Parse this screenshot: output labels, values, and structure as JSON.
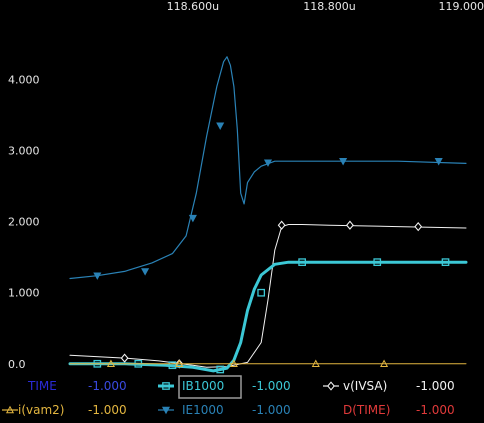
{
  "chart_data": {
    "type": "line",
    "x_unit": "u",
    "xlim": [
      118.42,
      119.0
    ],
    "ylim": [
      -0.2,
      4.95
    ],
    "x_ticks": [
      {
        "value": 118.6,
        "label": "118.600u"
      },
      {
        "value": 118.8,
        "label": "118.800u"
      },
      {
        "value": 119.0,
        "label": "119.000"
      }
    ],
    "y_ticks": [
      {
        "value": 4.0,
        "label": "4.000"
      },
      {
        "value": 3.0,
        "label": "3.000"
      },
      {
        "value": 2.0,
        "label": "2.000"
      },
      {
        "value": 1.0,
        "label": "1.000"
      },
      {
        "value": 0.0,
        "label": "0.0"
      }
    ],
    "grid": false,
    "series": [
      {
        "name": "IE1000",
        "color": "#2a82b6",
        "marker": "triangle-down",
        "width": 1.2,
        "x": [
          118.42,
          118.46,
          118.5,
          118.54,
          118.57,
          118.59,
          118.605,
          118.62,
          118.635,
          118.645,
          118.65,
          118.655,
          118.66,
          118.665,
          118.67,
          118.675,
          118.68,
          118.69,
          118.7,
          118.72,
          118.75,
          118.8,
          118.9,
          119.0
        ],
        "y": [
          1.2,
          1.24,
          1.3,
          1.42,
          1.55,
          1.8,
          2.4,
          3.2,
          3.9,
          4.25,
          4.32,
          4.2,
          3.9,
          3.3,
          2.4,
          2.25,
          2.55,
          2.7,
          2.78,
          2.85,
          2.85,
          2.85,
          2.85,
          2.82
        ],
        "marker_x": [
          118.46,
          118.53,
          118.6,
          118.64,
          118.71,
          118.82,
          118.96
        ],
        "marker_y": [
          1.24,
          1.3,
          2.05,
          3.35,
          2.83,
          2.85,
          2.85
        ]
      },
      {
        "name": "v(IVSA)",
        "color": "#f2f2f2",
        "marker": "diamond",
        "width": 1.0,
        "x": [
          118.42,
          118.5,
          118.55,
          118.6,
          118.62,
          118.65,
          118.68,
          118.7,
          118.71,
          118.72,
          118.73,
          118.74,
          118.76,
          118.8,
          118.9,
          119.0
        ],
        "y": [
          0.12,
          0.08,
          0.04,
          -0.02,
          -0.05,
          -0.04,
          0.02,
          0.3,
          0.9,
          1.6,
          1.93,
          1.96,
          1.96,
          1.95,
          1.93,
          1.91
        ],
        "marker_x": [
          118.5,
          118.58,
          118.73,
          118.83,
          118.93
        ],
        "marker_y": [
          0.08,
          0.0,
          1.95,
          1.95,
          1.93
        ]
      },
      {
        "name": "IB1000",
        "color": "#3cc8d6",
        "marker": "square",
        "width": 3.0,
        "x": [
          118.42,
          118.5,
          118.56,
          118.6,
          118.63,
          118.65,
          118.66,
          118.67,
          118.68,
          118.69,
          118.7,
          118.72,
          118.74,
          118.76,
          118.8,
          118.9,
          119.0
        ],
        "y": [
          0.0,
          0.0,
          -0.02,
          -0.05,
          -0.1,
          -0.06,
          0.05,
          0.3,
          0.75,
          1.05,
          1.25,
          1.4,
          1.43,
          1.43,
          1.43,
          1.43,
          1.43
        ],
        "marker_x": [
          118.46,
          118.52,
          118.57,
          118.64,
          118.7,
          118.76,
          118.87,
          118.97
        ],
        "marker_y": [
          0.0,
          0.0,
          -0.02,
          -0.08,
          1.0,
          1.43,
          1.43,
          1.43
        ]
      },
      {
        "name": "i(vam2)",
        "color": "#e3b640",
        "marker": "triangle-up",
        "width": 1.0,
        "x": [
          118.42,
          119.0
        ],
        "y": [
          0.0,
          0.0
        ],
        "marker_x": [
          118.48,
          118.58,
          118.66,
          118.78,
          118.88
        ],
        "marker_y": [
          0.0,
          0.0,
          0.0,
          0.0,
          0.0
        ]
      }
    ]
  },
  "legend": [
    {
      "name": "TIME",
      "value": "-1.000",
      "color": "#2a2ad6",
      "value_color": "#3a4ae0",
      "marker": "none"
    },
    {
      "name": "IB1000",
      "value": "-1.000",
      "color": "#3cc8d6",
      "value_color": "#3cc8d6",
      "marker": "square",
      "selected": true
    },
    {
      "name": "v(IVSA)",
      "value": "-1.000",
      "color": "#f2f2f2",
      "value_color": "#f2f2f2",
      "marker": "diamond"
    },
    {
      "name": "i(vam2)",
      "value": "-1.000",
      "color": "#e3b640",
      "value_color": "#e3b640",
      "marker": "triangle-up"
    },
    {
      "name": "IE1000",
      "value": "-1.000",
      "color": "#2a82b6",
      "value_color": "#2a82b6",
      "marker": "triangle-down"
    },
    {
      "name": "D(TIME)",
      "value": "-1.000",
      "color": "#e03a3a",
      "value_color": "#e03a3a",
      "marker": "none"
    }
  ]
}
